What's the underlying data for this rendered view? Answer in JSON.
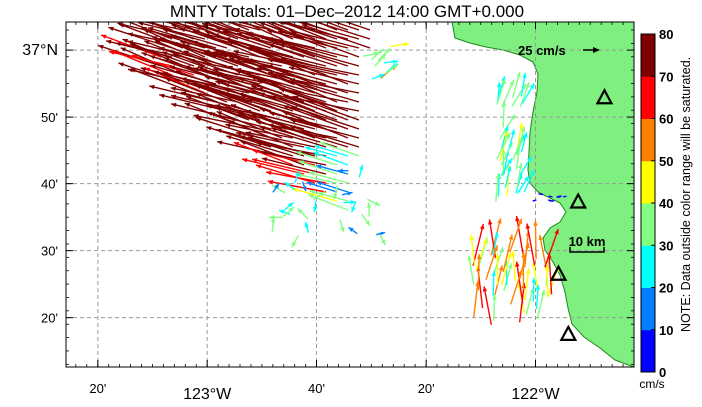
{
  "title": "MNTY Totals: 01–Dec–2012 14:00 GMT+0.000",
  "note": "NOTE: Data outside color range will be saturated.",
  "colorbar": {
    "unit": "cm/s",
    "ticks": [
      "0",
      "10",
      "20",
      "30",
      "40",
      "50",
      "60",
      "70",
      "80"
    ],
    "colors": [
      "#0000ff",
      "#0080ff",
      "#00ffff",
      "#80ff80",
      "#ffff00",
      "#ff8000",
      "#ff0000",
      "#800000"
    ]
  },
  "scale": {
    "vector_label": "25 cm/s",
    "distance_label": "10 km"
  },
  "axes": {
    "x_ticks": [
      {
        "text": "20'",
        "major": false,
        "lon": -123.333
      },
      {
        "text": "123°W",
        "major": true,
        "lon": -123.0
      },
      {
        "text": "40'",
        "major": false,
        "lon": -122.667
      },
      {
        "text": "20'",
        "major": false,
        "lon": -122.333
      },
      {
        "text": "122°W",
        "major": true,
        "lon": -122.0
      }
    ],
    "y_ticks": [
      {
        "text": "37°N",
        "major": true,
        "lat": 37.0
      },
      {
        "text": "50'",
        "major": false,
        "lat": 36.833
      },
      {
        "text": "40'",
        "major": false,
        "lat": 36.667
      },
      {
        "text": "30'",
        "major": false,
        "lat": 36.5
      },
      {
        "text": "20'",
        "major": false,
        "lat": 36.333
      }
    ]
  },
  "stations": [
    {
      "lon": -121.79,
      "lat": 36.88
    },
    {
      "lon": -121.87,
      "lat": 36.62
    },
    {
      "lon": -121.93,
      "lat": 36.44
    },
    {
      "lon": -121.9,
      "lat": 36.29
    }
  ],
  "colors": {
    "land": "#7fef7f",
    "coast": "#1e8a1e",
    "grid": "#9a9a9a"
  },
  "chart_data": {
    "type": "vector",
    "x_range": [
      -123.43,
      -121.7
    ],
    "y_range": [
      36.21,
      37.07
    ]
  }
}
